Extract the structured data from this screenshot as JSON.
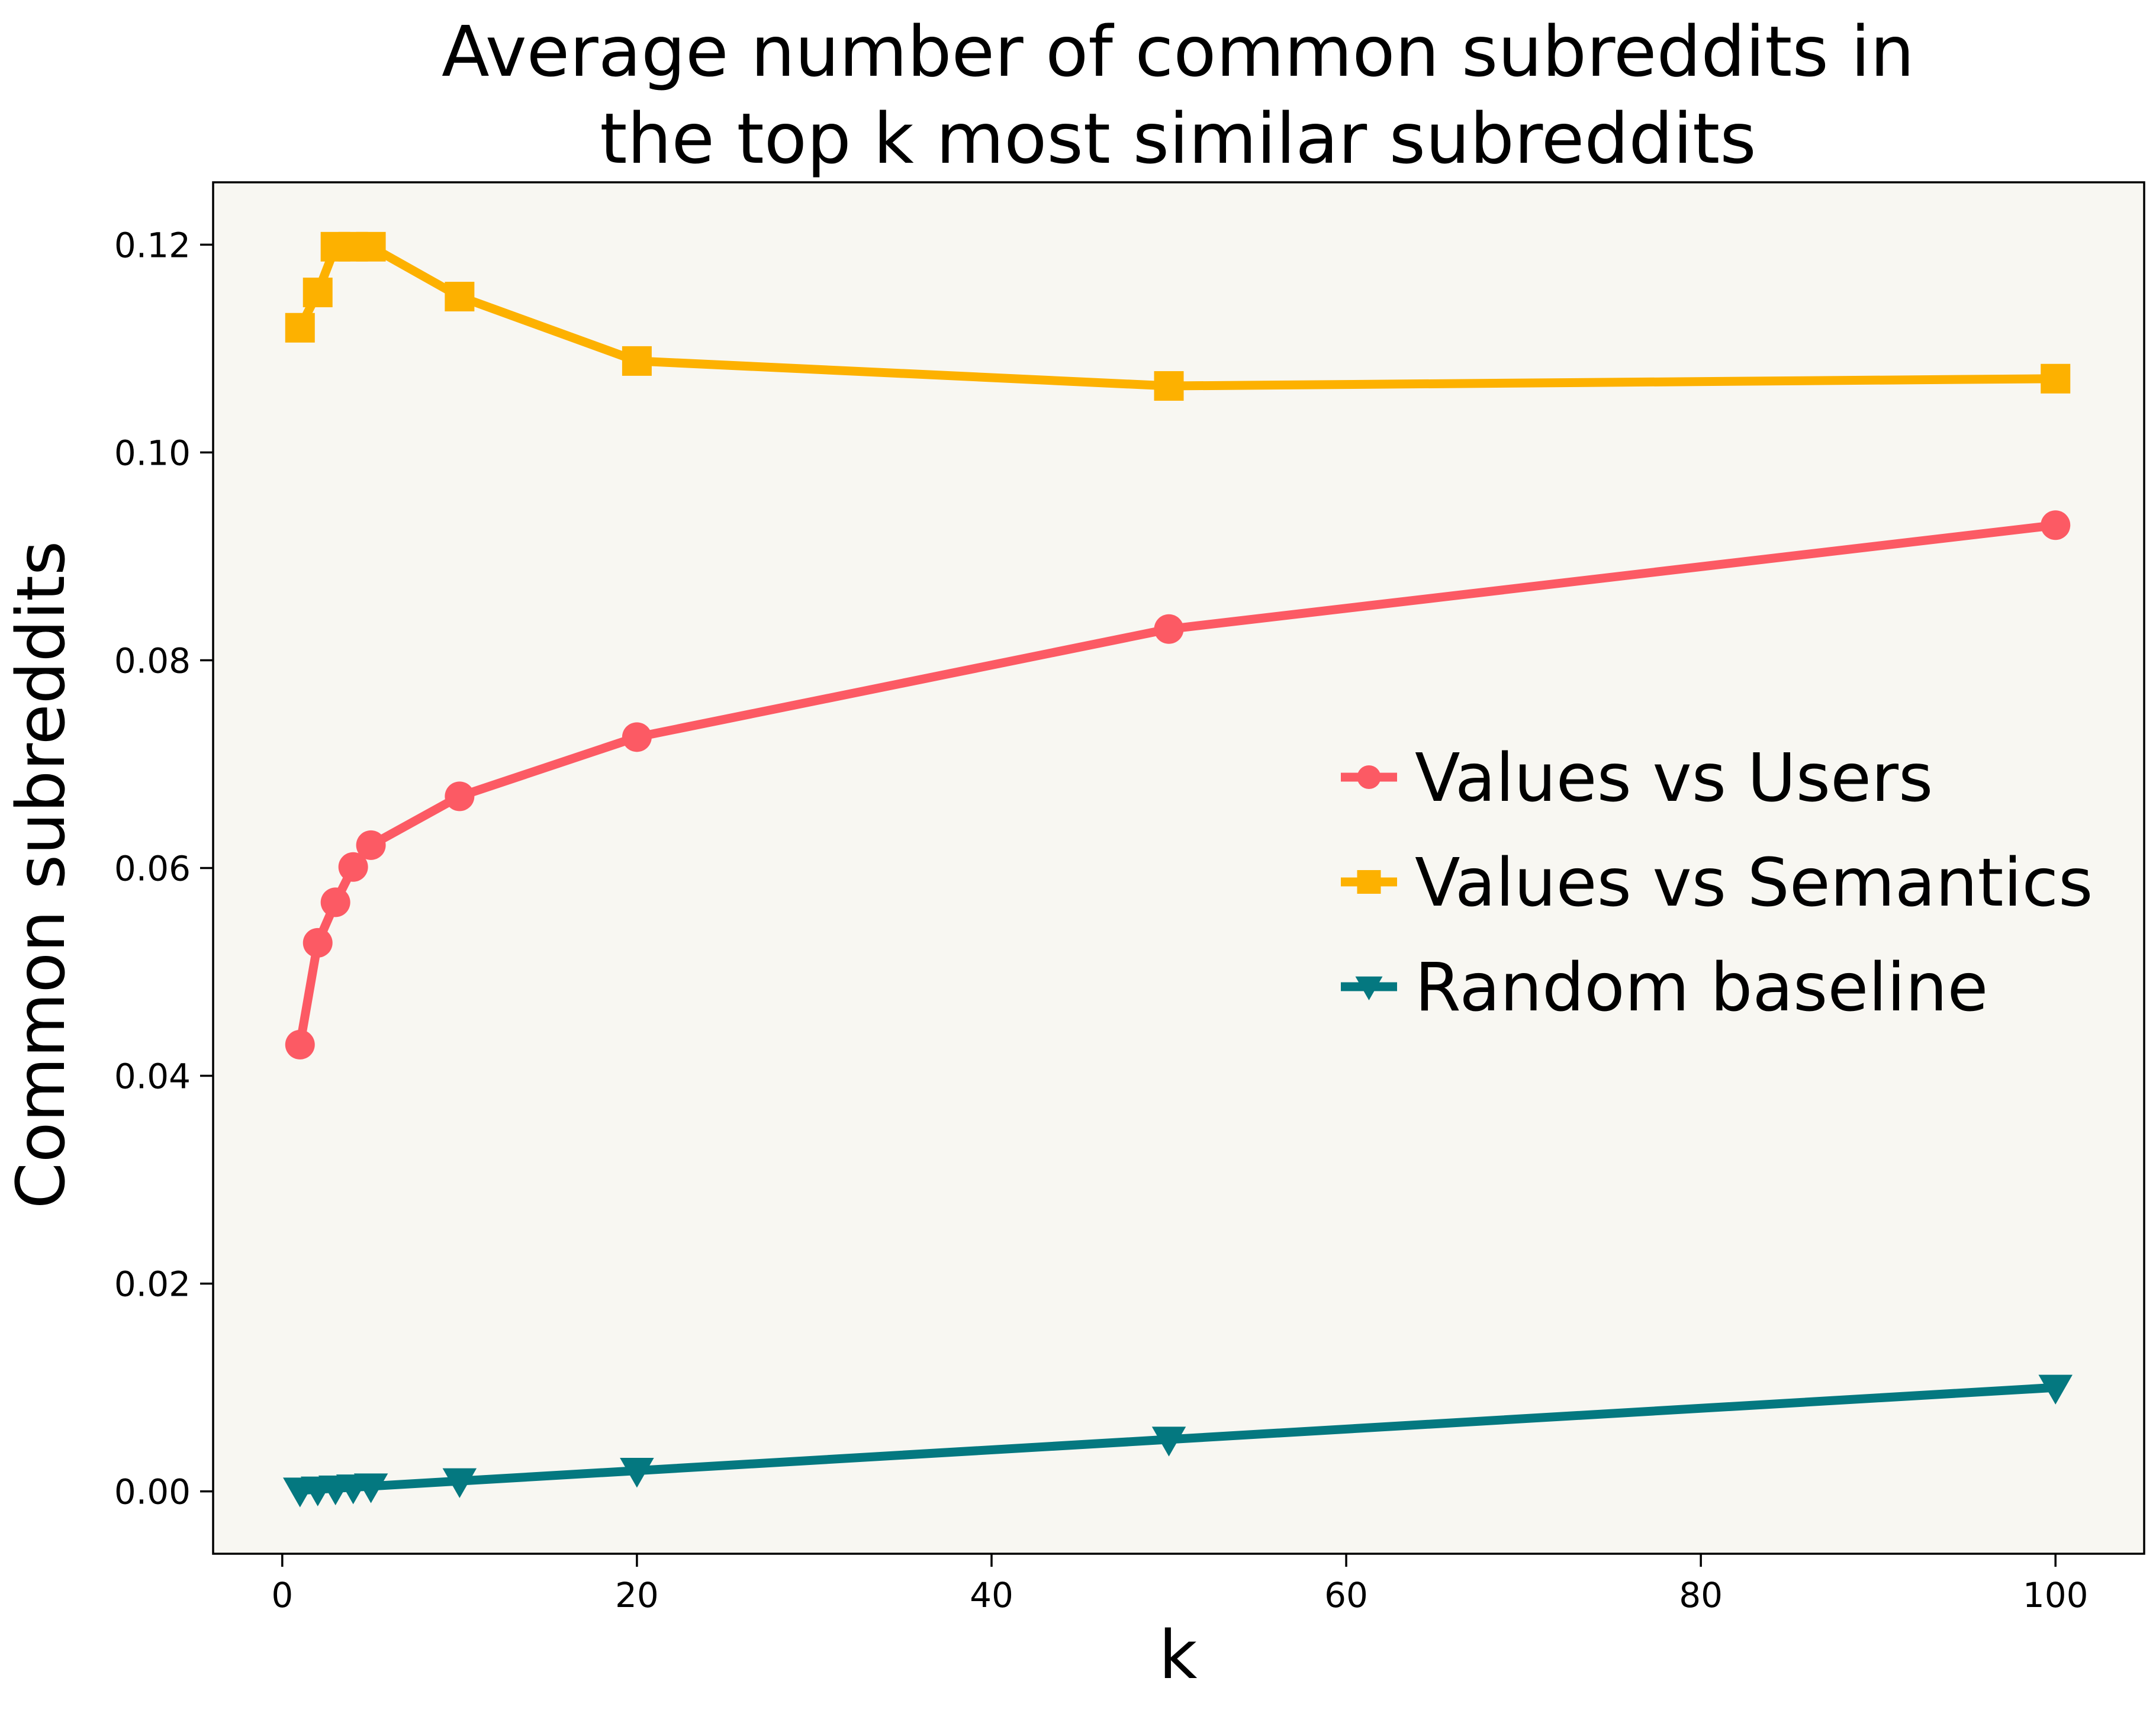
{
  "chart_data": {
    "type": "line",
    "title": [
      "Average number of common subreddits in",
      "the top k most similar subreddits"
    ],
    "xlabel": "k",
    "ylabel": "Common subreddits",
    "xlim": [
      -3.9,
      105
    ],
    "ylim": [
      -0.006,
      0.126
    ],
    "xticks": [
      0,
      20,
      40,
      60,
      80,
      100
    ],
    "xtick_labels": [
      "0",
      "20",
      "40",
      "60",
      "80",
      "100"
    ],
    "yticks": [
      0.0,
      0.02,
      0.04,
      0.06,
      0.08,
      0.1,
      0.12
    ],
    "ytick_labels": [
      "0.00",
      "0.02",
      "0.04",
      "0.06",
      "0.08",
      "0.10",
      "0.12"
    ],
    "x": [
      1,
      2,
      3,
      4,
      5,
      10,
      20,
      50,
      100
    ],
    "grid": false,
    "legend_position": "center-right",
    "background_color": "#f8f7f2",
    "series": [
      {
        "name": "Values vs Users",
        "color": "#fc5a64",
        "marker": "circle",
        "values": [
          0.043,
          0.0528,
          0.0567,
          0.0601,
          0.0622,
          0.0669,
          0.0726,
          0.083,
          0.093
        ]
      },
      {
        "name": "Values vs Semantics",
        "color": "#fdb100",
        "marker": "square",
        "values": [
          0.112,
          0.1154,
          0.1198,
          0.1198,
          0.1198,
          0.115,
          0.1088,
          0.1064,
          0.1071
        ]
      },
      {
        "name": "Random baseline",
        "color": "#047880",
        "marker": "triangle-down",
        "values": [
          0.0001,
          0.0002,
          0.0003,
          0.0004,
          0.0005,
          0.001,
          0.002,
          0.005,
          0.01
        ]
      }
    ]
  }
}
